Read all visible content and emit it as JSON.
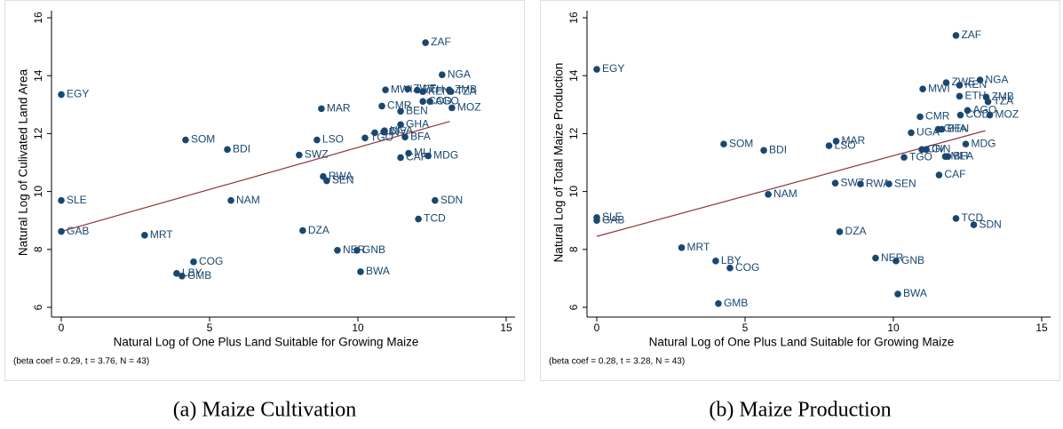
{
  "chart_data": [
    {
      "type": "scatter",
      "caption": "(a) Maize Cultivation",
      "x_label": "Natural Log of One Plus Land Suitable for Growing Maize",
      "y_label": "Natural Log of Culivated Land Area",
      "note": "(beta coef = 0.29, t = 3.76, N = 43)",
      "xlim": [
        0,
        15
      ],
      "ylim": [
        6,
        16
      ],
      "xticks": [
        0,
        5,
        10,
        15
      ],
      "yticks": [
        6,
        8,
        10,
        12,
        14,
        16
      ],
      "color": "#1a476f",
      "point_labels": [
        "ZAF",
        "NGA",
        "MWI",
        "ZWE",
        "KEN",
        "ZMB",
        "TZA",
        "COD",
        "AGO",
        "CMR",
        "MAR",
        "BEN",
        "MOZ",
        "GHA",
        "SOM",
        "BDI",
        "LSO",
        "TGO",
        "GIN",
        "CIV",
        "BFA",
        "SWZ",
        "MLI",
        "CAF",
        "MDG",
        "RWA",
        "SEN",
        "SLE",
        "NAM",
        "SDN",
        "TCD",
        "GAB",
        "MRT",
        "DZA",
        "NER",
        "GNB",
        "COG",
        "LBY",
        "GMB",
        "BWA",
        "EGY",
        "UGA",
        "ETH"
      ],
      "x": [
        12.28,
        12.84,
        10.93,
        11.68,
        12.19,
        13.08,
        13.14,
        12.19,
        12.43,
        10.81,
        8.77,
        11.44,
        13.17,
        11.44,
        4.19,
        5.6,
        8.62,
        10.24,
        10.57,
        10.87,
        11.59,
        8.02,
        11.71,
        11.44,
        12.37,
        8.83,
        8.95,
        0,
        5.72,
        12.6,
        12.04,
        0,
        2.81,
        8.14,
        9.31,
        9.97,
        4.46,
        3.89,
        4.07,
        10.09,
        0,
        10.9,
        12.0
      ],
      "values": [
        15.14,
        14.03,
        13.51,
        13.54,
        13.45,
        13.51,
        13.45,
        13.11,
        13.11,
        12.95,
        12.86,
        12.77,
        12.89,
        12.31,
        11.78,
        11.45,
        11.78,
        11.85,
        12.03,
        12.06,
        11.88,
        11.26,
        11.32,
        11.17,
        11.23,
        10.52,
        10.37,
        9.69,
        9.69,
        9.69,
        9.05,
        8.62,
        8.49,
        8.65,
        7.97,
        7.97,
        7.57,
        7.17,
        7.08,
        7.23,
        13.35,
        12.1,
        13.5
      ],
      "fit": {
        "x": [
          0,
          13.1
        ],
        "y": [
          8.62,
          12.42
        ],
        "color": "#90353b"
      }
    },
    {
      "type": "scatter",
      "caption": "(b) Maize Production",
      "x_label": "Natural Log of One Plus Land Suitable for Growing Maize",
      "y_label": "Natural Log of Total Maize Production",
      "note": "(beta coef = 0.28, t = 3.28, N = 43)",
      "xlim": [
        0,
        15
      ],
      "ylim": [
        6,
        16
      ],
      "xticks": [
        0,
        5,
        10,
        15
      ],
      "yticks": [
        6,
        8,
        10,
        12,
        14,
        16
      ],
      "color": "#1a476f",
      "point_labels": [
        "ZAF",
        "NGA",
        "ZWE",
        "KEN",
        "MWI",
        "ETH",
        "ZMB",
        "TZA",
        "EGY",
        "AGO",
        "COD",
        "MOZ",
        "CMR",
        "GHA",
        "BEN",
        "UGA",
        "MAR",
        "LSO",
        "SOM",
        "BDI",
        "MDG",
        "TGO",
        "GIN",
        "CIV",
        "MLI",
        "BFA",
        "CAF",
        "SWZ",
        "RWA",
        "SEN",
        "NAM",
        "SLE",
        "GAB",
        "TCD",
        "SDN",
        "MRT",
        "DZA",
        "LBY",
        "COG",
        "NER",
        "GNB",
        "BWA",
        "GMB"
      ],
      "x": [
        12.11,
        12.92,
        11.78,
        12.23,
        10.99,
        12.23,
        13.13,
        13.19,
        0,
        12.5,
        12.26,
        13.25,
        10.9,
        11.51,
        11.63,
        10.6,
        8.07,
        7.83,
        4.28,
        5.63,
        12.44,
        10.36,
        11.11,
        10.96,
        11.75,
        11.84,
        11.54,
        8.04,
        8.89,
        9.85,
        5.78,
        0,
        0,
        12.11,
        12.71,
        2.86,
        8.19,
        4.01,
        4.49,
        9.4,
        10.09,
        10.15,
        4.1
      ],
      "values": [
        15.39,
        13.85,
        13.76,
        13.67,
        13.54,
        13.29,
        13.26,
        13.1,
        14.22,
        12.8,
        12.64,
        12.64,
        12.58,
        12.15,
        12.15,
        12.03,
        11.74,
        11.58,
        11.64,
        11.42,
        11.64,
        11.18,
        11.45,
        11.45,
        11.21,
        11.21,
        10.57,
        10.29,
        10.26,
        10.26,
        9.9,
        9.1,
        9.0,
        9.07,
        8.85,
        8.06,
        8.61,
        7.6,
        7.36,
        7.7,
        7.6,
        6.46,
        6.13
      ],
      "fit": {
        "x": [
          0,
          13.1
        ],
        "y": [
          8.45,
          12.1
        ],
        "color": "#90353b"
      }
    }
  ]
}
